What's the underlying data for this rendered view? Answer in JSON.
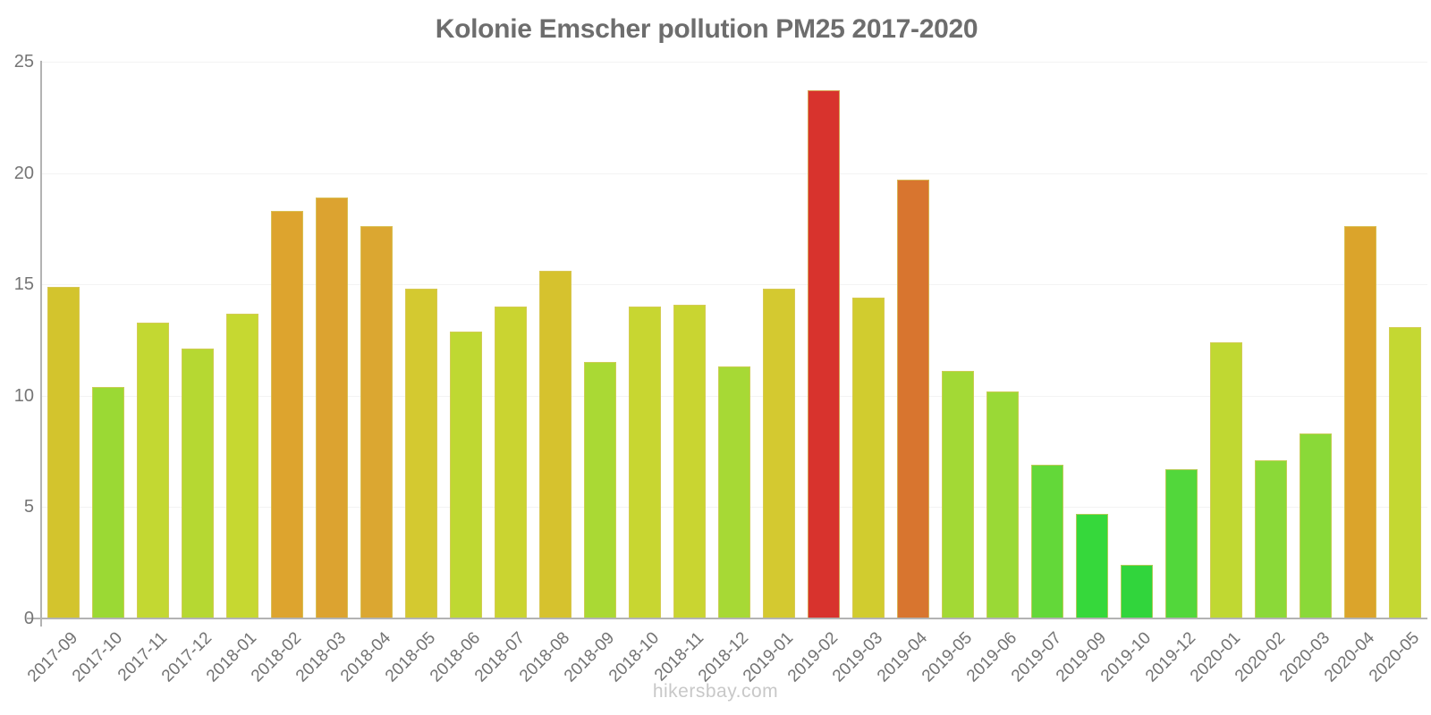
{
  "title": "Kolonie Emscher pollution PM25 2017-2020",
  "watermark": "hikersbay.com",
  "colors": {
    "title_text": "#6d6d6d",
    "axis_line": "#b3b3b3",
    "tick_label": "#757575",
    "gridline": "#f3f3f3",
    "watermark_text": "#c8c8c8",
    "bar_border": "rgba(216,200,96,0.75)"
  },
  "chart_data": {
    "type": "bar",
    "title": "Kolonie Emscher pollution PM25 2017-2020",
    "xlabel": "",
    "ylabel": "",
    "ylim": [
      0,
      25
    ],
    "yticks": [
      0,
      5,
      10,
      15,
      20,
      25
    ],
    "grid": "horizontal, very faint",
    "legend": "none",
    "categories": [
      "2017-09",
      "2017-10",
      "2017-11",
      "2017-12",
      "2018-01",
      "2018-02",
      "2018-03",
      "2018-04",
      "2018-05",
      "2018-06",
      "2018-07",
      "2018-08",
      "2018-09",
      "2018-10",
      "2018-11",
      "2018-12",
      "2019-01",
      "2019-02",
      "2019-03",
      "2019-04",
      "2019-05",
      "2019-06",
      "2019-07",
      "2019-09",
      "2019-10",
      "2019-12",
      "2020-01",
      "2020-02",
      "2020-03",
      "2020-04",
      "2020-05"
    ],
    "values": [
      14.9,
      10.4,
      13.3,
      12.1,
      13.7,
      18.3,
      18.9,
      17.6,
      14.8,
      12.9,
      14.0,
      15.6,
      11.5,
      14.0,
      14.1,
      11.3,
      14.8,
      23.7,
      14.4,
      19.7,
      11.1,
      10.2,
      6.9,
      4.7,
      2.4,
      6.7,
      12.4,
      7.1,
      8.3,
      17.6,
      13.1
    ],
    "bar_colors": [
      "#d3c42d",
      "#9bd934",
      "#c3d832",
      "#b6d832",
      "#c6d831",
      "#dda42e",
      "#dca330",
      "#dba731",
      "#d4c930",
      "#bfd832",
      "#cad431",
      "#d6c22e",
      "#aad934",
      "#c8d631",
      "#c9d531",
      "#a7d935",
      "#d4c930",
      "#d8332d",
      "#d1cc2f",
      "#d8752f",
      "#a3d935",
      "#9ad936",
      "#63d839",
      "#36d83b",
      "#31d53c",
      "#52d73b",
      "#c0d832",
      "#8bd938",
      "#8ad938",
      "#dba42b",
      "#c4d832"
    ]
  }
}
